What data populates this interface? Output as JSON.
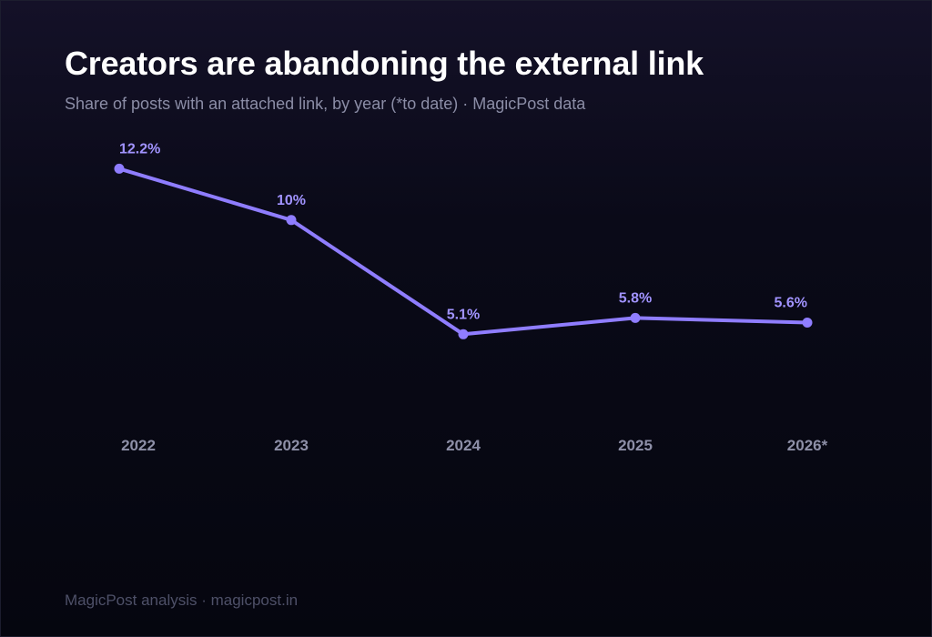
{
  "header": {
    "title": "Creators are abandoning the external link",
    "subtitle": "Share of posts with an attached link, by year (*to date) · MagicPost data"
  },
  "footer": {
    "source": "MagicPost analysis · magicpost.in"
  },
  "colors": {
    "line": "#8f7dff",
    "label": "#a193ff",
    "tick": "#8e90a8"
  },
  "chart_data": {
    "type": "line",
    "categories": [
      "2022",
      "2023",
      "2024",
      "2025",
      "2026*"
    ],
    "values": [
      12.2,
      10,
      5.1,
      5.8,
      5.6
    ],
    "value_labels": [
      "12.2%",
      "10%",
      "5.1%",
      "5.8%",
      "5.6%"
    ],
    "title": "Creators are abandoning the external link",
    "xlabel": "",
    "ylabel": "",
    "ylim": [
      0,
      16
    ],
    "grid": false,
    "legend": "none"
  }
}
